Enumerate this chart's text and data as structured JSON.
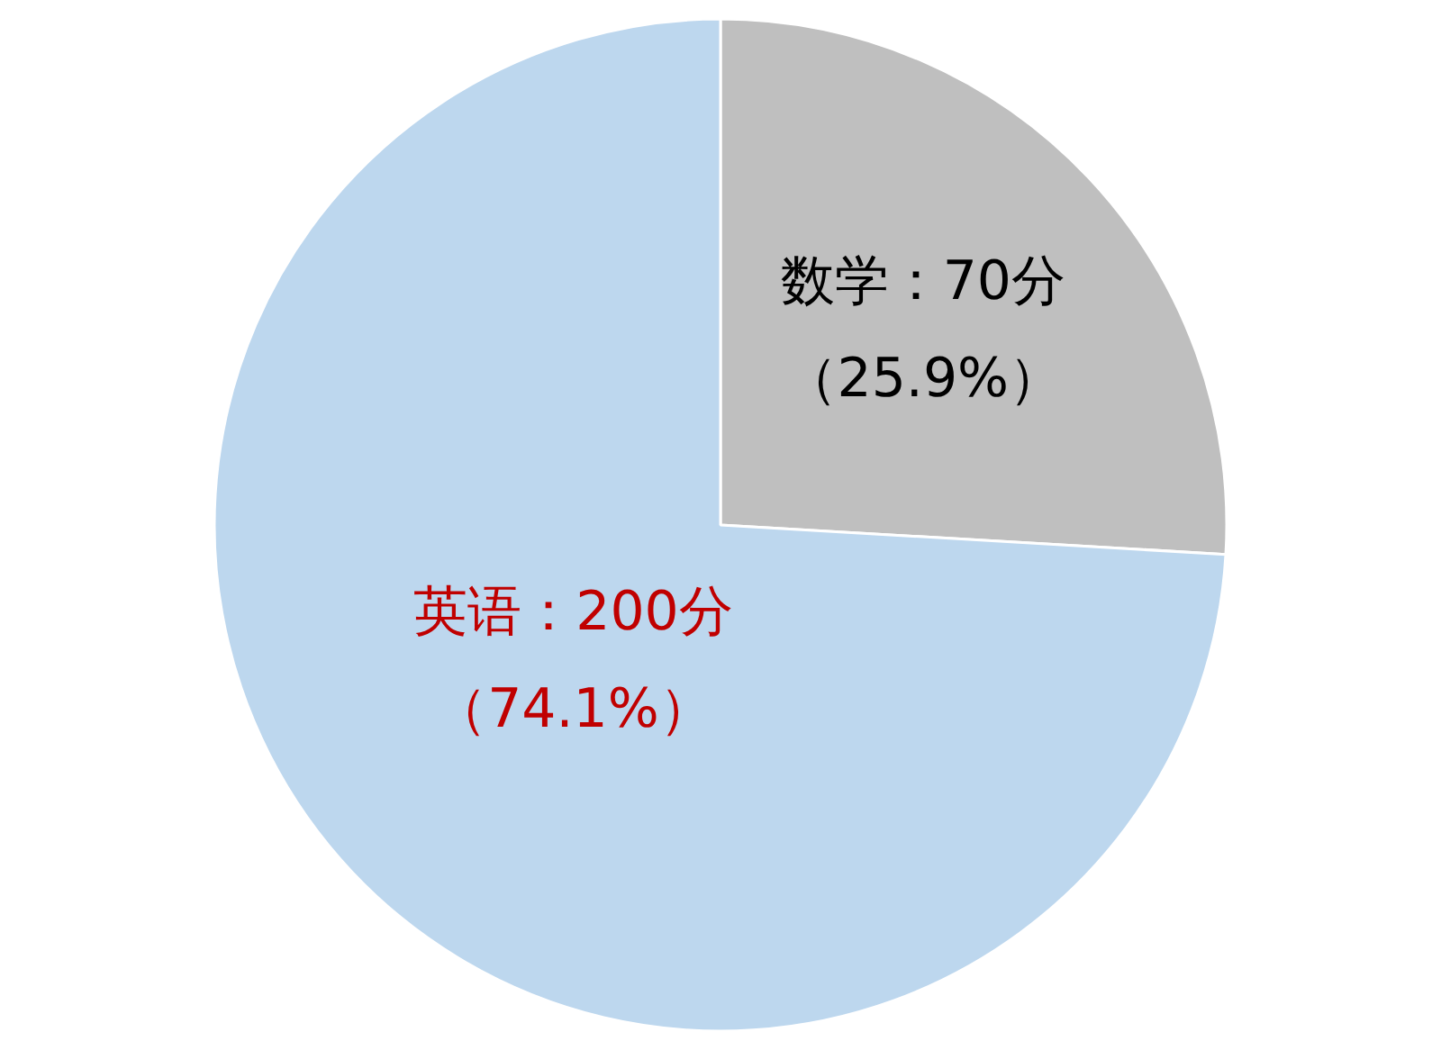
{
  "chart_data": {
    "type": "pie",
    "categories": [
      "数学",
      "英语"
    ],
    "values": [
      70,
      200
    ],
    "colors": [
      "#bfbfbf",
      "#bdd7ee"
    ],
    "value_labels": [
      "：70分（25.9%）",
      "：200分（74.1%）"
    ],
    "legend": false
  }
}
